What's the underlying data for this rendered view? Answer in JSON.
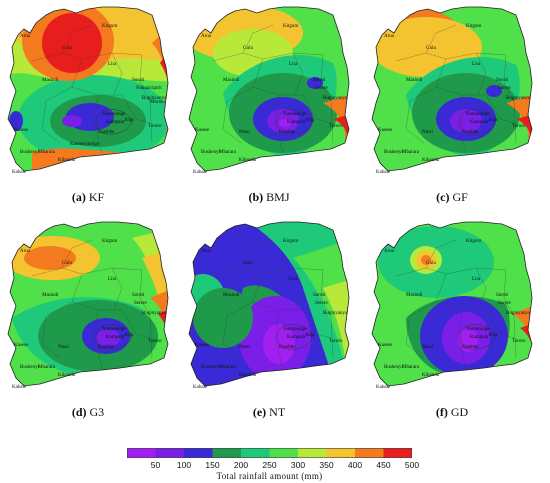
{
  "panels": [
    {
      "id": "a",
      "label": "(a)",
      "name": "KF",
      "towns": [
        "Arua",
        "Gulu",
        "Kitgum",
        "Lira",
        "Masindi",
        "Soroti",
        "Nakapiripirit",
        "Moroto",
        "Kasese",
        "Mbarara",
        "Bushenyi",
        "Kabale",
        "Kampala",
        "Jinja",
        "Entebbe",
        "Namulonge",
        "Tororo",
        "Buginyanya",
        "Kibanda",
        "Kamenyamigo"
      ]
    },
    {
      "id": "b",
      "label": "(b)",
      "name": "BMJ",
      "towns": [
        "Arua",
        "Gulu",
        "Kitgum",
        "Lira",
        "Masindi",
        "Soroti",
        "Serere",
        "Kasese",
        "Mbarara",
        "Bushenyi",
        "Kabale",
        "Kampala",
        "Jinja",
        "Entebbe",
        "Namulonge",
        "Tororo",
        "Buginyanya",
        "Kibanda",
        "Ntusi"
      ]
    },
    {
      "id": "c",
      "label": "(c)",
      "name": "GF",
      "towns": [
        "Arua",
        "Gulu",
        "Kitgum",
        "Lira",
        "Masindi",
        "Soroti",
        "Serere",
        "Kasese",
        "Mbarara",
        "Bushenyi",
        "Kabale",
        "Kampala",
        "Jinja",
        "Entebbe",
        "Namulonge",
        "Tororo",
        "Buginyanya",
        "Kibanda",
        "Ntusi"
      ]
    },
    {
      "id": "d",
      "label": "(d)",
      "name": "G3",
      "towns": [
        "Arua",
        "Gulu",
        "Kitgum",
        "Lira",
        "Masindi",
        "Soroti",
        "Serere",
        "Kasese",
        "Mbarara",
        "Bushenyi",
        "Kabale",
        "Kampala",
        "Jinja",
        "Entebbe",
        "Namulonge",
        "Tororo",
        "Buginyanya",
        "Kibanda",
        "Ntusi"
      ]
    },
    {
      "id": "e",
      "label": "(e)",
      "name": "NT",
      "towns": [
        "Arua",
        "Gulu",
        "Kitgum",
        "Lira",
        "Masindi",
        "Soroti",
        "Serere",
        "Kasese",
        "Mbarara",
        "Bushenyi",
        "Kabale",
        "Kampala",
        "Jinja",
        "Entebbe",
        "Namulonge",
        "Tororo",
        "Buginyanya",
        "Kibanda",
        "Ntusi"
      ]
    },
    {
      "id": "f",
      "label": "(f)",
      "name": "GD",
      "towns": [
        "Arua",
        "Gulu",
        "Kitgum",
        "Lira",
        "Masindi",
        "Soroti",
        "Serere",
        "Kasese",
        "Mbarara",
        "Bushenyi",
        "Kabale",
        "Kampala",
        "Jinja",
        "Entebbe",
        "Namulonge",
        "Tororo",
        "Buginyanya",
        "Kibanda",
        "Ntusi"
      ]
    }
  ],
  "legend": {
    "title": "Total rainfall amount (mm)",
    "ticks": [
      "50",
      "100",
      "150",
      "200",
      "250",
      "300",
      "350",
      "400",
      "450",
      "500"
    ],
    "colors": [
      "#a020f0",
      "#7b1fe8",
      "#3a2ad6",
      "#1f9a4a",
      "#1fc97a",
      "#4fe04a",
      "#b8e83a",
      "#f4c430",
      "#f47a20",
      "#e81e1e"
    ]
  }
}
